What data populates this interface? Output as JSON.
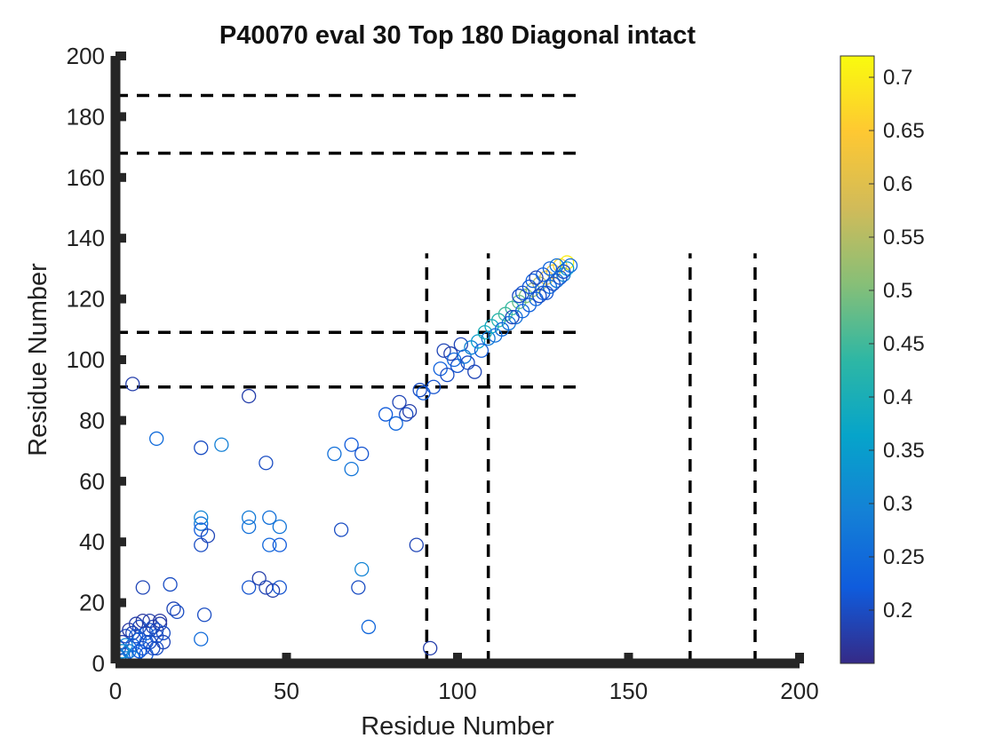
{
  "chart_data": {
    "type": "scatter",
    "title": "P40070 eval 30 Top 180 Diagonal intact",
    "xlabel": "Residue Number",
    "ylabel": "Residue Number",
    "xlim": [
      0,
      200
    ],
    "ylim": [
      0,
      200
    ],
    "x_ticks": [
      "0",
      "50",
      "100",
      "150",
      "200"
    ],
    "y_ticks": [
      "0",
      "20",
      "40",
      "60",
      "80",
      "100",
      "120",
      "140",
      "160",
      "180",
      "200"
    ],
    "grid": false,
    "colormap": "parula",
    "colorbar": {
      "range": [
        0.15,
        0.72
      ],
      "ticks": [
        "0.2",
        "0.25",
        "0.3",
        "0.35",
        "0.4",
        "0.45",
        "0.5",
        "0.55",
        "0.6",
        "0.65",
        "0.7"
      ],
      "tick_values": [
        0.2,
        0.25,
        0.3,
        0.35,
        0.4,
        0.45,
        0.5,
        0.55,
        0.6,
        0.65,
        0.7
      ],
      "colors": [
        "#352a87",
        "#0f5cdd",
        "#1481d6",
        "#06a4ca",
        "#2eb7a4",
        "#87bf77",
        "#d1bb59",
        "#fec832",
        "#f9fb0e"
      ]
    },
    "boundary_lines": {
      "style": "dashed",
      "color": "#000000",
      "vertical_x": [
        91,
        109,
        168,
        187
      ],
      "vertical_y_range": [
        0,
        135
      ],
      "horizontal_y": [
        91,
        109,
        168,
        187
      ],
      "horizontal_x_range": [
        0,
        137
      ]
    },
    "marker": "open-circle",
    "points": [
      {
        "x": 1,
        "y": 2,
        "v": 0.2
      },
      {
        "x": 2,
        "y": 1,
        "v": 0.25
      },
      {
        "x": 1,
        "y": 5,
        "v": 0.2
      },
      {
        "x": 3,
        "y": 3,
        "v": 0.3
      },
      {
        "x": 2,
        "y": 7,
        "v": 0.18
      },
      {
        "x": 4,
        "y": 4,
        "v": 0.28
      },
      {
        "x": 3,
        "y": 9,
        "v": 0.2
      },
      {
        "x": 5,
        "y": 6,
        "v": 0.25
      },
      {
        "x": 4,
        "y": 11,
        "v": 0.17
      },
      {
        "x": 6,
        "y": 3,
        "v": 0.22
      },
      {
        "x": 5,
        "y": 10,
        "v": 0.19
      },
      {
        "x": 7,
        "y": 8,
        "v": 0.24
      },
      {
        "x": 6,
        "y": 13,
        "v": 0.18
      },
      {
        "x": 8,
        "y": 5,
        "v": 0.21
      },
      {
        "x": 7,
        "y": 12,
        "v": 0.2
      },
      {
        "x": 9,
        "y": 10,
        "v": 0.23
      },
      {
        "x": 8,
        "y": 14,
        "v": 0.17
      },
      {
        "x": 10,
        "y": 7,
        "v": 0.2
      },
      {
        "x": 9,
        "y": 3,
        "v": 0.22
      },
      {
        "x": 11,
        "y": 12,
        "v": 0.19
      },
      {
        "x": 10,
        "y": 14,
        "v": 0.18
      },
      {
        "x": 12,
        "y": 9,
        "v": 0.21
      },
      {
        "x": 11,
        "y": 5,
        "v": 0.2
      },
      {
        "x": 13,
        "y": 13,
        "v": 0.18
      },
      {
        "x": 12,
        "y": 11,
        "v": 0.2
      },
      {
        "x": 14,
        "y": 7,
        "v": 0.19
      },
      {
        "x": 13,
        "y": 14,
        "v": 0.17
      },
      {
        "x": 14,
        "y": 10,
        "v": 0.2
      },
      {
        "x": 3,
        "y": 6,
        "v": 0.3
      },
      {
        "x": 5,
        "y": 2,
        "v": 0.27
      },
      {
        "x": 7,
        "y": 4,
        "v": 0.22
      },
      {
        "x": 9,
        "y": 7,
        "v": 0.21
      },
      {
        "x": 2,
        "y": 4,
        "v": 0.32
      },
      {
        "x": 6,
        "y": 9,
        "v": 0.21
      },
      {
        "x": 10,
        "y": 11,
        "v": 0.2
      },
      {
        "x": 12,
        "y": 5,
        "v": 0.2
      },
      {
        "x": 5,
        "y": 92,
        "v": 0.18
      },
      {
        "x": 12,
        "y": 74,
        "v": 0.25
      },
      {
        "x": 8,
        "y": 25,
        "v": 0.19
      },
      {
        "x": 16,
        "y": 26,
        "v": 0.2
      },
      {
        "x": 17,
        "y": 18,
        "v": 0.19
      },
      {
        "x": 18,
        "y": 17,
        "v": 0.2
      },
      {
        "x": 25,
        "y": 71,
        "v": 0.2
      },
      {
        "x": 31,
        "y": 72,
        "v": 0.29
      },
      {
        "x": 25,
        "y": 8,
        "v": 0.25
      },
      {
        "x": 26,
        "y": 16,
        "v": 0.2
      },
      {
        "x": 25,
        "y": 46,
        "v": 0.27
      },
      {
        "x": 25,
        "y": 48,
        "v": 0.3
      },
      {
        "x": 25,
        "y": 44,
        "v": 0.22
      },
      {
        "x": 27,
        "y": 42,
        "v": 0.19
      },
      {
        "x": 25,
        "y": 39,
        "v": 0.2
      },
      {
        "x": 39,
        "y": 88,
        "v": 0.18
      },
      {
        "x": 39,
        "y": 48,
        "v": 0.28
      },
      {
        "x": 39,
        "y": 45,
        "v": 0.26
      },
      {
        "x": 39,
        "y": 25,
        "v": 0.21
      },
      {
        "x": 42,
        "y": 28,
        "v": 0.18
      },
      {
        "x": 44,
        "y": 66,
        "v": 0.2
      },
      {
        "x": 45,
        "y": 48,
        "v": 0.26
      },
      {
        "x": 45,
        "y": 39,
        "v": 0.24
      },
      {
        "x": 48,
        "y": 45,
        "v": 0.27
      },
      {
        "x": 48,
        "y": 39,
        "v": 0.22
      },
      {
        "x": 44,
        "y": 25,
        "v": 0.19
      },
      {
        "x": 46,
        "y": 24,
        "v": 0.18
      },
      {
        "x": 48,
        "y": 25,
        "v": 0.21
      },
      {
        "x": 64,
        "y": 69,
        "v": 0.26
      },
      {
        "x": 66,
        "y": 44,
        "v": 0.2
      },
      {
        "x": 69,
        "y": 72,
        "v": 0.22
      },
      {
        "x": 69,
        "y": 64,
        "v": 0.27
      },
      {
        "x": 72,
        "y": 69,
        "v": 0.21
      },
      {
        "x": 72,
        "y": 31,
        "v": 0.3
      },
      {
        "x": 71,
        "y": 25,
        "v": 0.2
      },
      {
        "x": 74,
        "y": 12,
        "v": 0.24
      },
      {
        "x": 79,
        "y": 82,
        "v": 0.22
      },
      {
        "x": 82,
        "y": 79,
        "v": 0.24
      },
      {
        "x": 83,
        "y": 86,
        "v": 0.19
      },
      {
        "x": 85,
        "y": 82,
        "v": 0.2
      },
      {
        "x": 86,
        "y": 83,
        "v": 0.18
      },
      {
        "x": 88,
        "y": 39,
        "v": 0.19
      },
      {
        "x": 89,
        "y": 90,
        "v": 0.2
      },
      {
        "x": 90,
        "y": 89,
        "v": 0.22
      },
      {
        "x": 92,
        "y": 5,
        "v": 0.18
      },
      {
        "x": 93,
        "y": 91,
        "v": 0.21
      },
      {
        "x": 95,
        "y": 97,
        "v": 0.23
      },
      {
        "x": 96,
        "y": 103,
        "v": 0.19
      },
      {
        "x": 97,
        "y": 95,
        "v": 0.2
      },
      {
        "x": 98,
        "y": 102,
        "v": 0.18
      },
      {
        "x": 99,
        "y": 100,
        "v": 0.24
      },
      {
        "x": 100,
        "y": 98,
        "v": 0.21
      },
      {
        "x": 101,
        "y": 105,
        "v": 0.19
      },
      {
        "x": 102,
        "y": 101,
        "v": 0.27
      },
      {
        "x": 103,
        "y": 99,
        "v": 0.2
      },
      {
        "x": 104,
        "y": 104,
        "v": 0.3
      },
      {
        "x": 105,
        "y": 96,
        "v": 0.19
      },
      {
        "x": 106,
        "y": 106,
        "v": 0.35
      },
      {
        "x": 107,
        "y": 103,
        "v": 0.22
      },
      {
        "x": 108,
        "y": 109,
        "v": 0.4
      },
      {
        "x": 109,
        "y": 107,
        "v": 0.28
      },
      {
        "x": 110,
        "y": 111,
        "v": 0.38
      },
      {
        "x": 111,
        "y": 108,
        "v": 0.26
      },
      {
        "x": 112,
        "y": 113,
        "v": 0.42
      },
      {
        "x": 113,
        "y": 110,
        "v": 0.25
      },
      {
        "x": 114,
        "y": 115,
        "v": 0.45
      },
      {
        "x": 115,
        "y": 112,
        "v": 0.27
      },
      {
        "x": 116,
        "y": 117,
        "v": 0.44
      },
      {
        "x": 117,
        "y": 114,
        "v": 0.26
      },
      {
        "x": 118,
        "y": 119,
        "v": 0.48
      },
      {
        "x": 119,
        "y": 116,
        "v": 0.24
      },
      {
        "x": 120,
        "y": 121,
        "v": 0.5
      },
      {
        "x": 121,
        "y": 118,
        "v": 0.23
      },
      {
        "x": 122,
        "y": 123,
        "v": 0.52
      },
      {
        "x": 123,
        "y": 120,
        "v": 0.24
      },
      {
        "x": 124,
        "y": 125,
        "v": 0.55
      },
      {
        "x": 125,
        "y": 122,
        "v": 0.22
      },
      {
        "x": 126,
        "y": 127,
        "v": 0.58
      },
      {
        "x": 127,
        "y": 124,
        "v": 0.25
      },
      {
        "x": 128,
        "y": 129,
        "v": 0.62
      },
      {
        "x": 129,
        "y": 126,
        "v": 0.27
      },
      {
        "x": 130,
        "y": 131,
        "v": 0.66
      },
      {
        "x": 131,
        "y": 128,
        "v": 0.3
      },
      {
        "x": 132,
        "y": 132,
        "v": 0.7
      },
      {
        "x": 132,
        "y": 130,
        "v": 0.35
      },
      {
        "x": 121,
        "y": 124,
        "v": 0.22
      },
      {
        "x": 124,
        "y": 121,
        "v": 0.2
      },
      {
        "x": 126,
        "y": 122,
        "v": 0.21
      },
      {
        "x": 122,
        "y": 126,
        "v": 0.23
      },
      {
        "x": 128,
        "y": 125,
        "v": 0.2
      },
      {
        "x": 125,
        "y": 128,
        "v": 0.22
      },
      {
        "x": 130,
        "y": 127,
        "v": 0.21
      },
      {
        "x": 127,
        "y": 130,
        "v": 0.24
      },
      {
        "x": 131,
        "y": 129,
        "v": 0.2
      },
      {
        "x": 129,
        "y": 131,
        "v": 0.26
      },
      {
        "x": 118,
        "y": 121,
        "v": 0.2
      },
      {
        "x": 116,
        "y": 114,
        "v": 0.19
      },
      {
        "x": 119,
        "y": 122,
        "v": 0.21
      },
      {
        "x": 123,
        "y": 127,
        "v": 0.19
      },
      {
        "x": 133,
        "y": 131,
        "v": 0.25
      }
    ]
  }
}
